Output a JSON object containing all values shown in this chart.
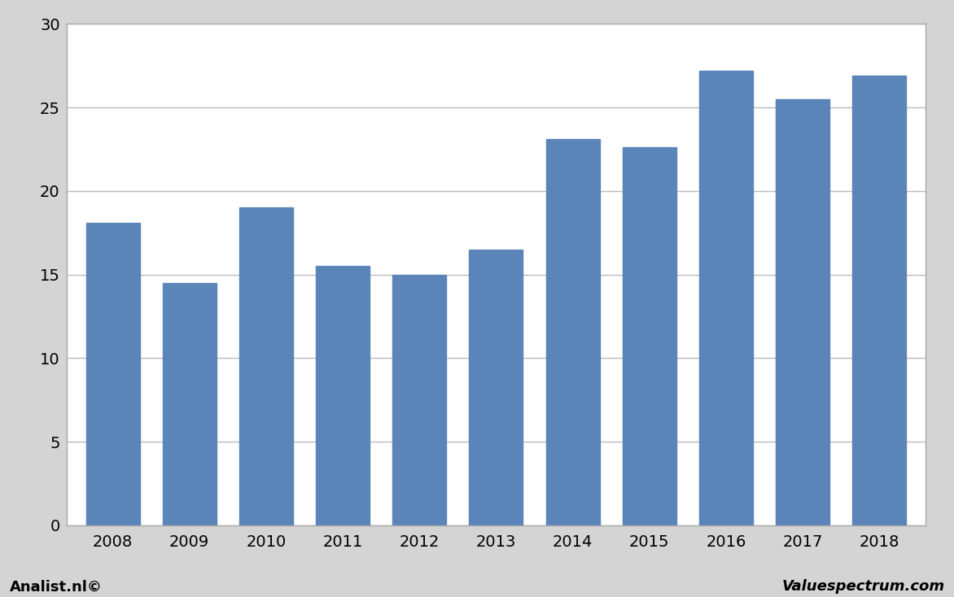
{
  "categories": [
    "2008",
    "2009",
    "2010",
    "2011",
    "2012",
    "2013",
    "2014",
    "2015",
    "2016",
    "2017",
    "2018"
  ],
  "values": [
    18.1,
    14.5,
    19.0,
    15.5,
    15.0,
    16.5,
    23.1,
    22.6,
    27.2,
    25.5,
    26.9
  ],
  "bar_color": "#5b84b8",
  "ylim": [
    0,
    30
  ],
  "yticks": [
    0,
    5,
    10,
    15,
    20,
    25,
    30
  ],
  "background_color": "#d4d4d4",
  "plot_bg_color": "#ffffff",
  "grid_color": "#bbbbbb",
  "border_color": "#aaaaaa",
  "footer_left": "Analist.nl©",
  "footer_right": "Valuespectrum.com",
  "footer_fontsize": 13,
  "tick_fontsize": 14,
  "bar_width": 0.7
}
